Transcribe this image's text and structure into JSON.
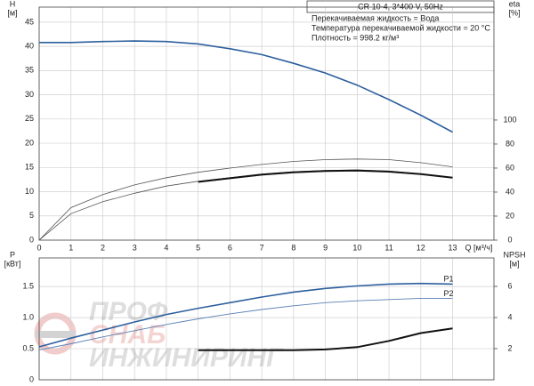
{
  "chart_data": [
    {
      "type": "line",
      "ylabel": [
        "H",
        "[м]"
      ],
      "y2label": [
        "eta",
        "[%]"
      ],
      "xlabel": "Q [м³/ч]",
      "title": "CR 10-4, 3*400 V, 50Hz",
      "annotations": [
        "Перекачиваемая жидкость = Вода",
        "Температура перекачиваемой жидкости = 20 °C",
        "Плотность = 998.2 кг/м³"
      ],
      "x": [
        0,
        1,
        2,
        3,
        4,
        5,
        6,
        7,
        8,
        9,
        10,
        11,
        12,
        13
      ],
      "xlim": [
        0,
        14.3
      ],
      "xticks": [
        0,
        1,
        2,
        3,
        4,
        5,
        6,
        7,
        8,
        9,
        10,
        11,
        12,
        13
      ],
      "ylim": [
        0,
        48.1
      ],
      "yticks": [
        0,
        5,
        10,
        15,
        20,
        25,
        30,
        35,
        40,
        45
      ],
      "y2lim": [
        0,
        194
      ],
      "y2ticks": [
        0,
        20,
        40,
        60,
        80,
        100
      ],
      "grid": true,
      "series": [
        {
          "color": "#2d5f9e",
          "line_width": 1.6,
          "values": [
            40.8,
            40.8,
            41,
            41.1,
            41,
            40.5,
            39.5,
            38.3,
            36.5,
            34.5,
            32,
            29,
            25.8,
            22.3
          ]
        },
        {
          "color": "#555555",
          "line_width": 0.8,
          "axis": "y2",
          "values": [
            0,
            27,
            38,
            46,
            52,
            56.5,
            60,
            63,
            65.5,
            67,
            67.5,
            67,
            64.5,
            61
          ]
        },
        {
          "color": "#555555",
          "line_width": 0.8,
          "axis": "y2",
          "values": [
            0,
            22,
            32,
            39,
            45,
            49,
            52,
            55,
            57,
            58,
            58.5,
            57.5,
            55,
            52
          ]
        },
        {
          "color": "#111111",
          "line_width": 2,
          "axis": "y2",
          "values": [
            null,
            null,
            null,
            null,
            null,
            48.5,
            51.5,
            54.5,
            56.5,
            57.5,
            58,
            57,
            55,
            52
          ]
        }
      ]
    },
    {
      "type": "line",
      "ylabel": [
        "P",
        "[кВт]"
      ],
      "y2label": [
        "NPSH",
        "[м]"
      ],
      "watermark": [
        "ПРОФ",
        "СНАБ",
        "ИНЖИНИРИНГ"
      ],
      "x": [
        0,
        1,
        2,
        3,
        4,
        5,
        6,
        7,
        8,
        9,
        10,
        11,
        12,
        13
      ],
      "xlim": [
        0,
        14.3
      ],
      "ylim": [
        0,
        1.96
      ],
      "yticks": [
        0,
        0.5,
        {
          "value": 1,
          "label": "1.0"
        },
        1.5
      ],
      "y2lim": [
        0,
        7.83
      ],
      "y2ticks": [
        2,
        4,
        6
      ],
      "grid": true,
      "series": [
        {
          "name": "P1",
          "color": "#2d5f9e",
          "line_width": 1.6,
          "values": [
            0.53,
            0.67,
            0.8,
            0.93,
            1.05,
            1.15,
            1.24,
            1.33,
            1.41,
            1.47,
            1.51,
            1.54,
            1.55,
            1.54
          ]
        },
        {
          "name": "P2",
          "color": "#5a7fb5",
          "line_width": 0.9,
          "values": [
            0.48,
            0.58,
            0.69,
            0.79,
            0.89,
            0.98,
            1.06,
            1.13,
            1.19,
            1.24,
            1.27,
            1.29,
            1.31,
            1.31
          ]
        },
        {
          "color": "#111111",
          "line_width": 2,
          "axis": "y2",
          "values": [
            null,
            null,
            null,
            null,
            null,
            1.9,
            1.9,
            1.9,
            1.9,
            1.95,
            2.1,
            2.5,
            3.0,
            3.3
          ]
        }
      ]
    }
  ]
}
